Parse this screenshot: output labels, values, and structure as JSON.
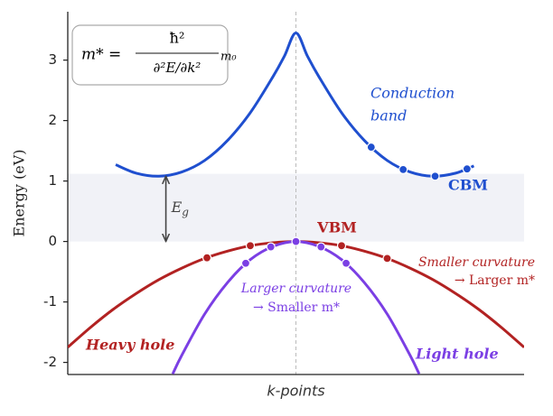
{
  "chart_data": {
    "type": "line",
    "y_label": "Energy (eV)",
    "x_label": "k-points",
    "ylim": [
      -2.2,
      3.8
    ],
    "yticks": [
      -2,
      -1,
      0,
      1,
      2,
      3
    ],
    "xlim": [
      -1,
      1
    ],
    "center_line": 0,
    "band_gap_region": [
      0,
      1.12
    ],
    "gap_arrow": {
      "x": -0.57,
      "from": 0,
      "to": 1.08,
      "label": {
        "symbol": "E",
        "subscript": "g"
      }
    },
    "series": [
      {
        "color": "#1f4fcf",
        "x": [
          -0.79,
          -0.7,
          -0.6,
          -0.5,
          -0.4,
          -0.3,
          -0.2,
          -0.1,
          -0.05,
          0,
          0.05,
          0.1,
          0.2,
          0.3,
          0.4,
          0.5,
          0.6,
          0.7,
          0.78
        ],
        "values": [
          1.27,
          1.13,
          1.08,
          1.15,
          1.34,
          1.67,
          2.13,
          2.73,
          3.07,
          3.45,
          3.07,
          2.73,
          2.13,
          1.67,
          1.34,
          1.15,
          1.08,
          1.13,
          1.25
        ],
        "markers": {
          "x": [
            0.33,
            0.47,
            0.61,
            0.75
          ],
          "values": [
            1.56,
            1.19,
            1.08,
            1.2
          ]
        }
      },
      {
        "name": "Heavy hole",
        "color": "#b22222",
        "x": [
          -1,
          -0.9,
          -0.8,
          -0.7,
          -0.6,
          -0.5,
          -0.4,
          -0.3,
          -0.2,
          -0.1,
          0,
          0.1,
          0.2,
          0.3,
          0.4,
          0.5,
          0.6,
          0.7,
          0.8,
          0.9,
          1
        ],
        "values": [
          -1.75,
          -1.42,
          -1.12,
          -0.86,
          -0.63,
          -0.44,
          -0.28,
          -0.16,
          -0.07,
          -0.02,
          0,
          -0.02,
          -0.07,
          -0.16,
          -0.28,
          -0.44,
          -0.63,
          -0.86,
          -1.12,
          -1.42,
          -1.75
        ],
        "markers": {
          "x": [
            -0.39,
            -0.2,
            0.2,
            0.4
          ],
          "values": [
            -0.27,
            -0.07,
            -0.07,
            -0.28
          ]
        }
      },
      {
        "name": "Light hole",
        "color": "#7b3fe4",
        "x": [
          -0.54,
          -0.5,
          -0.4,
          -0.3,
          -0.2,
          -0.1,
          0,
          0.1,
          0.2,
          0.3,
          0.4,
          0.5,
          0.54
        ],
        "values": [
          -2.19,
          -1.88,
          -1.2,
          -0.68,
          -0.3,
          -0.08,
          0,
          -0.08,
          -0.3,
          -0.68,
          -1.2,
          -1.88,
          -2.19
        ],
        "markers": {
          "x": [
            -0.22,
            -0.11,
            0,
            0.11,
            0.22
          ],
          "values": [
            -0.36,
            -0.09,
            0,
            -0.09,
            -0.36
          ]
        }
      }
    ],
    "annotations": {
      "conduction": [
        "Conduction",
        "band"
      ],
      "cbm": "CBM",
      "vbm": "VBM",
      "heavy_note": [
        "Smaller curvature",
        "→ Larger m*"
      ],
      "light_note": [
        "Larger curvature",
        "→ Smaller m*"
      ],
      "formula": {
        "lhs": "m* =",
        "numerator": "ħ²",
        "denominator": "∂²E/∂k²",
        "factor": "m₀"
      }
    }
  }
}
